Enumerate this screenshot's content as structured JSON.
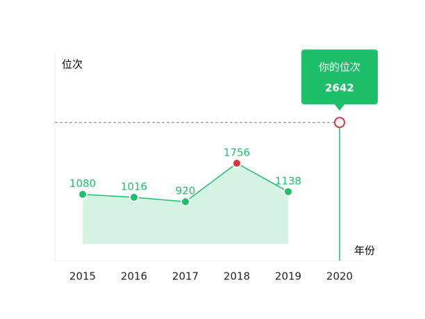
{
  "chart_data": {
    "type": "line",
    "y_label": "位次",
    "x_label": "年份",
    "categories": [
      "2015",
      "2016",
      "2017",
      "2018",
      "2019",
      "2020"
    ],
    "series": [
      {
        "color": "#1dbf6a",
        "values": [
          1080,
          1016,
          920,
          1756,
          1138,
          null
        ]
      }
    ],
    "area_color": "#d4f3e2",
    "max_color": "#d9363e",
    "highlight": {
      "category_index": 5,
      "value": 2642,
      "label": "你的位次",
      "color": "#1dbf6a",
      "marker_color": "#d9363e"
    },
    "ylim": [
      -360,
      4170
    ]
  }
}
